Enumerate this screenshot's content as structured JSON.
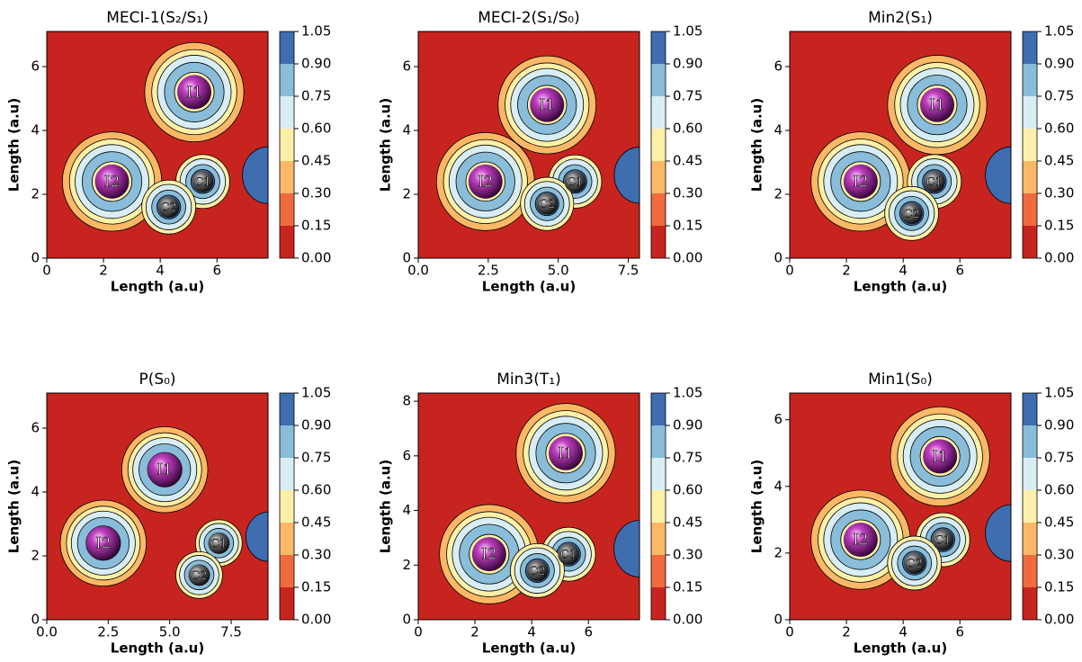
{
  "chart_data": [
    {
      "type": "contour",
      "title": "MECI-1(S₂/S₁)",
      "x_label": "Length (a.u)",
      "y_label": "Length (a.u)",
      "xlim": [
        0,
        7.8
      ],
      "xticks": [
        0,
        2,
        4,
        6
      ],
      "ylim": [
        0,
        7.1
      ],
      "yticks": [
        0,
        2,
        4,
        6
      ],
      "levels": [
        {
          "value": 0,
          "label": "0.00"
        },
        {
          "value": 0.15,
          "label": "0.15"
        },
        {
          "value": 0.3,
          "label": "0.30"
        },
        {
          "value": 0.45,
          "label": "0.45"
        },
        {
          "value": 0.6,
          "label": "0.60"
        },
        {
          "value": 0.75,
          "label": "0.75"
        },
        {
          "value": 0.9,
          "label": "0.90"
        },
        {
          "value": 1.05,
          "label": "1.05"
        }
      ],
      "colors": [
        "#c8241f",
        "#ef6a3e",
        "#fbb866",
        "#fdf0a8",
        "#d9eef4",
        "#89bdd9",
        "#3e6db0"
      ],
      "atoms": [
        {
          "label": "I1",
          "x": 5.2,
          "y": 5.2
        },
        {
          "label": "I2",
          "x": 2.3,
          "y": 2.4
        },
        {
          "label": "C1",
          "x": 5.5,
          "y": 2.4
        },
        {
          "label": "C2",
          "x": 4.3,
          "y": 1.6
        }
      ]
    },
    {
      "type": "contour",
      "title": "MECI-2(S₁/S₀)",
      "x_label": "Length (a.u)",
      "y_label": "Length (a.u)",
      "xlim": [
        0,
        7.9
      ],
      "xticks": [
        {
          "value": 0,
          "label": "0.0"
        },
        {
          "value": 2.5,
          "label": "2.5"
        },
        {
          "value": 5,
          "label": "5.0"
        },
        {
          "value": 7.5,
          "label": "7.5"
        }
      ],
      "ylim": [
        0,
        7.1
      ],
      "yticks": [
        0,
        2,
        4,
        6
      ],
      "levels": [
        {
          "value": 0,
          "label": "0.00"
        },
        {
          "value": 0.15,
          "label": "0.15"
        },
        {
          "value": 0.3,
          "label": "0.30"
        },
        {
          "value": 0.45,
          "label": "0.45"
        },
        {
          "value": 0.6,
          "label": "0.60"
        },
        {
          "value": 0.75,
          "label": "0.75"
        },
        {
          "value": 0.9,
          "label": "0.90"
        },
        {
          "value": 1.05,
          "label": "1.05"
        }
      ],
      "colors": [
        "#c8241f",
        "#ef6a3e",
        "#fbb866",
        "#fdf0a8",
        "#d9eef4",
        "#89bdd9",
        "#3e6db0"
      ],
      "atoms": [
        {
          "label": "I1",
          "x": 4.6,
          "y": 4.8
        },
        {
          "label": "I2",
          "x": 2.4,
          "y": 2.4
        },
        {
          "label": "C1",
          "x": 5.6,
          "y": 2.4
        },
        {
          "label": "C2",
          "x": 4.6,
          "y": 1.7
        }
      ]
    },
    {
      "type": "contour",
      "title": "Min2(S₁)",
      "x_label": "Length (a.u)",
      "y_label": "Length (a.u)",
      "xlim": [
        0,
        7.8
      ],
      "xticks": [
        0,
        2,
        4,
        6
      ],
      "ylim": [
        0,
        7.1
      ],
      "yticks": [
        0,
        2,
        4,
        6
      ],
      "levels": [
        {
          "value": 0,
          "label": "0.00"
        },
        {
          "value": 0.15,
          "label": "0.15"
        },
        {
          "value": 0.3,
          "label": "0.30"
        },
        {
          "value": 0.45,
          "label": "0.45"
        },
        {
          "value": 0.6,
          "label": "0.60"
        },
        {
          "value": 0.75,
          "label": "0.75"
        },
        {
          "value": 0.9,
          "label": "0.90"
        },
        {
          "value": 1.05,
          "label": "1.05"
        }
      ],
      "colors": [
        "#c8241f",
        "#ef6a3e",
        "#fbb866",
        "#fdf0a8",
        "#d9eef4",
        "#89bdd9",
        "#3e6db0"
      ],
      "atoms": [
        {
          "label": "I1",
          "x": 5.2,
          "y": 4.8
        },
        {
          "label": "I2",
          "x": 2.5,
          "y": 2.4
        },
        {
          "label": "C1",
          "x": 5.1,
          "y": 2.4
        },
        {
          "label": "C2",
          "x": 4.3,
          "y": 1.4
        }
      ]
    },
    {
      "type": "contour",
      "title": "P(S₀)",
      "x_label": "Length (a.u)",
      "y_label": "Length (a.u)",
      "xlim": [
        0,
        9
      ],
      "xticks": [
        {
          "value": 0,
          "label": "0.0"
        },
        {
          "value": 2.5,
          "label": "2.5"
        },
        {
          "value": 5,
          "label": "5.0"
        },
        {
          "value": 7.5,
          "label": "7.5"
        }
      ],
      "ylim": [
        0,
        7.1
      ],
      "yticks": [
        0,
        2,
        4,
        6
      ],
      "levels": [
        {
          "value": 0,
          "label": "0.00"
        },
        {
          "value": 0.15,
          "label": "0.15"
        },
        {
          "value": 0.3,
          "label": "0.30"
        },
        {
          "value": 0.45,
          "label": "0.45"
        },
        {
          "value": 0.6,
          "label": "0.60"
        },
        {
          "value": 0.75,
          "label": "0.75"
        },
        {
          "value": 0.9,
          "label": "0.90"
        },
        {
          "value": 1.05,
          "label": "1.05"
        }
      ],
      "colors": [
        "#c8241f",
        "#ef6a3e",
        "#fbb866",
        "#fdf0a8",
        "#d9eef4",
        "#89bdd9",
        "#3e6db0"
      ],
      "atoms": [
        {
          "label": "I1",
          "x": 4.8,
          "y": 4.7
        },
        {
          "label": "I2",
          "x": 2.3,
          "y": 2.4
        },
        {
          "label": "C1",
          "x": 7.0,
          "y": 2.4
        },
        {
          "label": "C2",
          "x": 6.2,
          "y": 1.4
        }
      ]
    },
    {
      "type": "contour",
      "title": "Min3(T₁)",
      "x_label": "Length (a.u)",
      "y_label": "Length (a.u)",
      "xlim": [
        0,
        7.8
      ],
      "xticks": [
        0,
        2,
        4,
        6
      ],
      "ylim": [
        0,
        8.3
      ],
      "yticks": [
        0,
        2,
        4,
        6,
        8
      ],
      "levels": [
        {
          "value": 0,
          "label": "0.00"
        },
        {
          "value": 0.15,
          "label": "0.15"
        },
        {
          "value": 0.3,
          "label": "0.30"
        },
        {
          "value": 0.45,
          "label": "0.45"
        },
        {
          "value": 0.6,
          "label": "0.60"
        },
        {
          "value": 0.75,
          "label": "0.75"
        },
        {
          "value": 0.9,
          "label": "0.90"
        },
        {
          "value": 1.05,
          "label": "1.05"
        }
      ],
      "colors": [
        "#c8241f",
        "#ef6a3e",
        "#fbb866",
        "#fdf0a8",
        "#d9eef4",
        "#89bdd9",
        "#3e6db0"
      ],
      "atoms": [
        {
          "label": "I1",
          "x": 5.2,
          "y": 6.1
        },
        {
          "label": "I2",
          "x": 2.5,
          "y": 2.4
        },
        {
          "label": "C1",
          "x": 5.3,
          "y": 2.4
        },
        {
          "label": "C2",
          "x": 4.2,
          "y": 1.8
        }
      ]
    },
    {
      "type": "contour",
      "title": "Min1(S₀)",
      "x_label": "Length (a.u)",
      "y_label": "Length (a.u)",
      "xlim": [
        0,
        7.8
      ],
      "xticks": [
        0,
        2,
        4,
        6
      ],
      "ylim": [
        0,
        6.8
      ],
      "yticks": [
        0,
        2,
        4,
        6
      ],
      "levels": [
        {
          "value": 0,
          "label": "0.00"
        },
        {
          "value": 0.15,
          "label": "0.15"
        },
        {
          "value": 0.3,
          "label": "0.30"
        },
        {
          "value": 0.45,
          "label": "0.45"
        },
        {
          "value": 0.6,
          "label": "0.60"
        },
        {
          "value": 0.75,
          "label": "0.75"
        },
        {
          "value": 0.9,
          "label": "0.90"
        },
        {
          "value": 1.05,
          "label": "1.05"
        }
      ],
      "colors": [
        "#c8241f",
        "#ef6a3e",
        "#fbb866",
        "#fdf0a8",
        "#d9eef4",
        "#89bdd9",
        "#3e6db0"
      ],
      "atoms": [
        {
          "label": "I1",
          "x": 5.3,
          "y": 4.9
        },
        {
          "label": "I2",
          "x": 2.5,
          "y": 2.4
        },
        {
          "label": "C1",
          "x": 5.4,
          "y": 2.4
        },
        {
          "label": "C2",
          "x": 4.4,
          "y": 1.7
        }
      ]
    }
  ]
}
